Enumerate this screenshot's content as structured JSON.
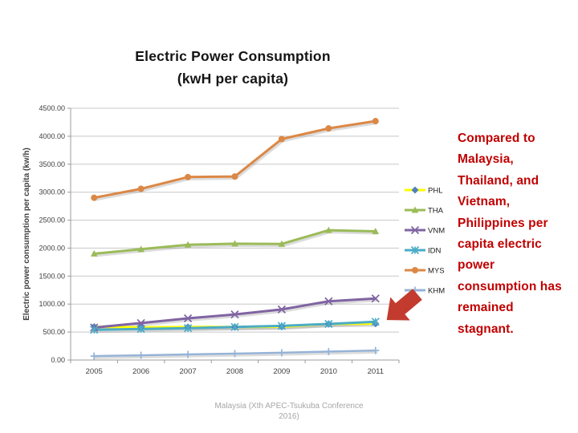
{
  "slide": {
    "title_line1": "Electric Power Consumption",
    "title_line2": "(kwH per capita)",
    "side_note_lines": [
      "Compared to",
      "Malaysia,",
      "Thailand, and",
      "Vietnam,",
      "Philippines per",
      "capita electric",
      "power",
      "consumption has",
      "remained",
      "stagnant."
    ],
    "caption": "Malaysia (Xth APEC-Tsukuba Conference 2016)",
    "colors": {
      "side_note": "#C00000",
      "caption": "#A6A6A6",
      "arrow": "#C23B2E",
      "title": "#141414"
    }
  },
  "chart_data": {
    "type": "line",
    "title": "Electric Power Consumption (kwH per capita)",
    "ylabel": "Electric power consumption per capita (kw/h)",
    "xlabel": "",
    "x": [
      "2005",
      "2006",
      "2007",
      "2008",
      "2009",
      "2010",
      "2011"
    ],
    "ylim": [
      0,
      4500
    ],
    "ytick_step": 500,
    "grid": true,
    "legend_position": "right",
    "colors": {
      "gridline": "#C8C8C8",
      "axis": "#9B9B9B",
      "tick_text": "#3F3F3F"
    },
    "series": [
      {
        "name": "PHL",
        "color": "#FFFF00",
        "marker": "diamond",
        "marker_color": "#4F81BD",
        "values": [
          595,
          585,
          590,
          590,
          595,
          645,
          650
        ]
      },
      {
        "name": "THA",
        "color": "#9BBB59",
        "marker": "triangle",
        "marker_color": "#9BBB59",
        "values": [
          1900,
          1980,
          2060,
          2080,
          2075,
          2320,
          2300
        ]
      },
      {
        "name": "VNM",
        "color": "#8064A2",
        "marker": "x",
        "marker_color": "#8064A2",
        "values": [
          580,
          660,
          745,
          815,
          905,
          1050,
          1100
        ]
      },
      {
        "name": "IDN",
        "color": "#4BACC6",
        "marker": "star",
        "marker_color": "#4BACC6",
        "values": [
          540,
          555,
          570,
          590,
          610,
          645,
          685
        ]
      },
      {
        "name": "MYS",
        "color": "#DB8846",
        "marker": "circle",
        "marker_color": "#DB8846",
        "values": [
          2900,
          3060,
          3270,
          3280,
          3950,
          4140,
          4270
        ]
      },
      {
        "name": "KHM",
        "color": "#95B3D7",
        "marker": "plus",
        "marker_color": "#95B3D7",
        "values": [
          70,
          85,
          100,
          115,
          130,
          150,
          170
        ]
      }
    ]
  }
}
